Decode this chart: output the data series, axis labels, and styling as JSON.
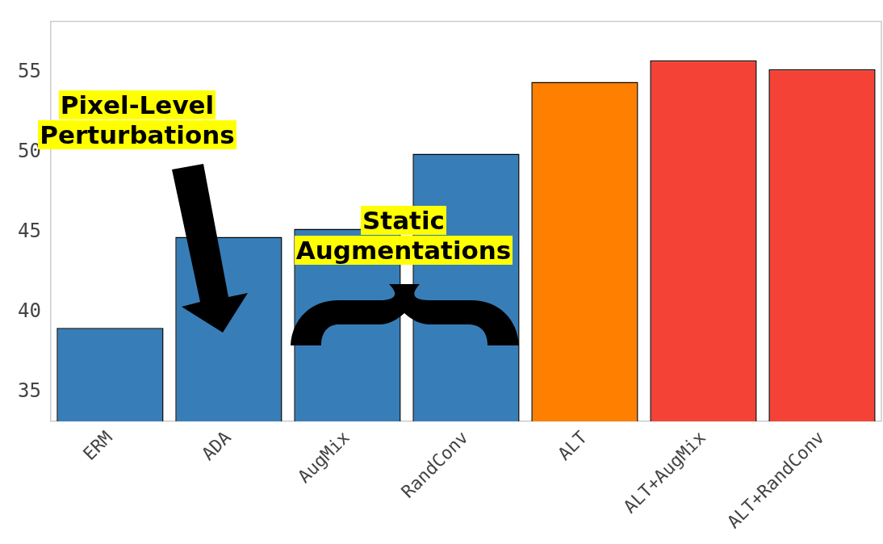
{
  "chart_data": {
    "type": "bar",
    "categories": [
      "ERM",
      "ADA",
      "AugMix",
      "RandConv",
      "ALT",
      "ALT+AugMix",
      "ALT+RandConv"
    ],
    "values": [
      39.0,
      44.7,
      45.2,
      49.9,
      54.4,
      55.75,
      55.2
    ],
    "colors": [
      "#377eb8",
      "#377eb8",
      "#377eb8",
      "#377eb8",
      "#ff7f00",
      "#f44336",
      "#f44336"
    ],
    "ylim": [
      33.15,
      58.2
    ],
    "yticks": [
      35,
      40,
      45,
      50,
      55
    ],
    "grid": false,
    "legend": false,
    "annotations": [
      "Pixel-Level Perturbations",
      "Static Augmentations"
    ]
  }
}
